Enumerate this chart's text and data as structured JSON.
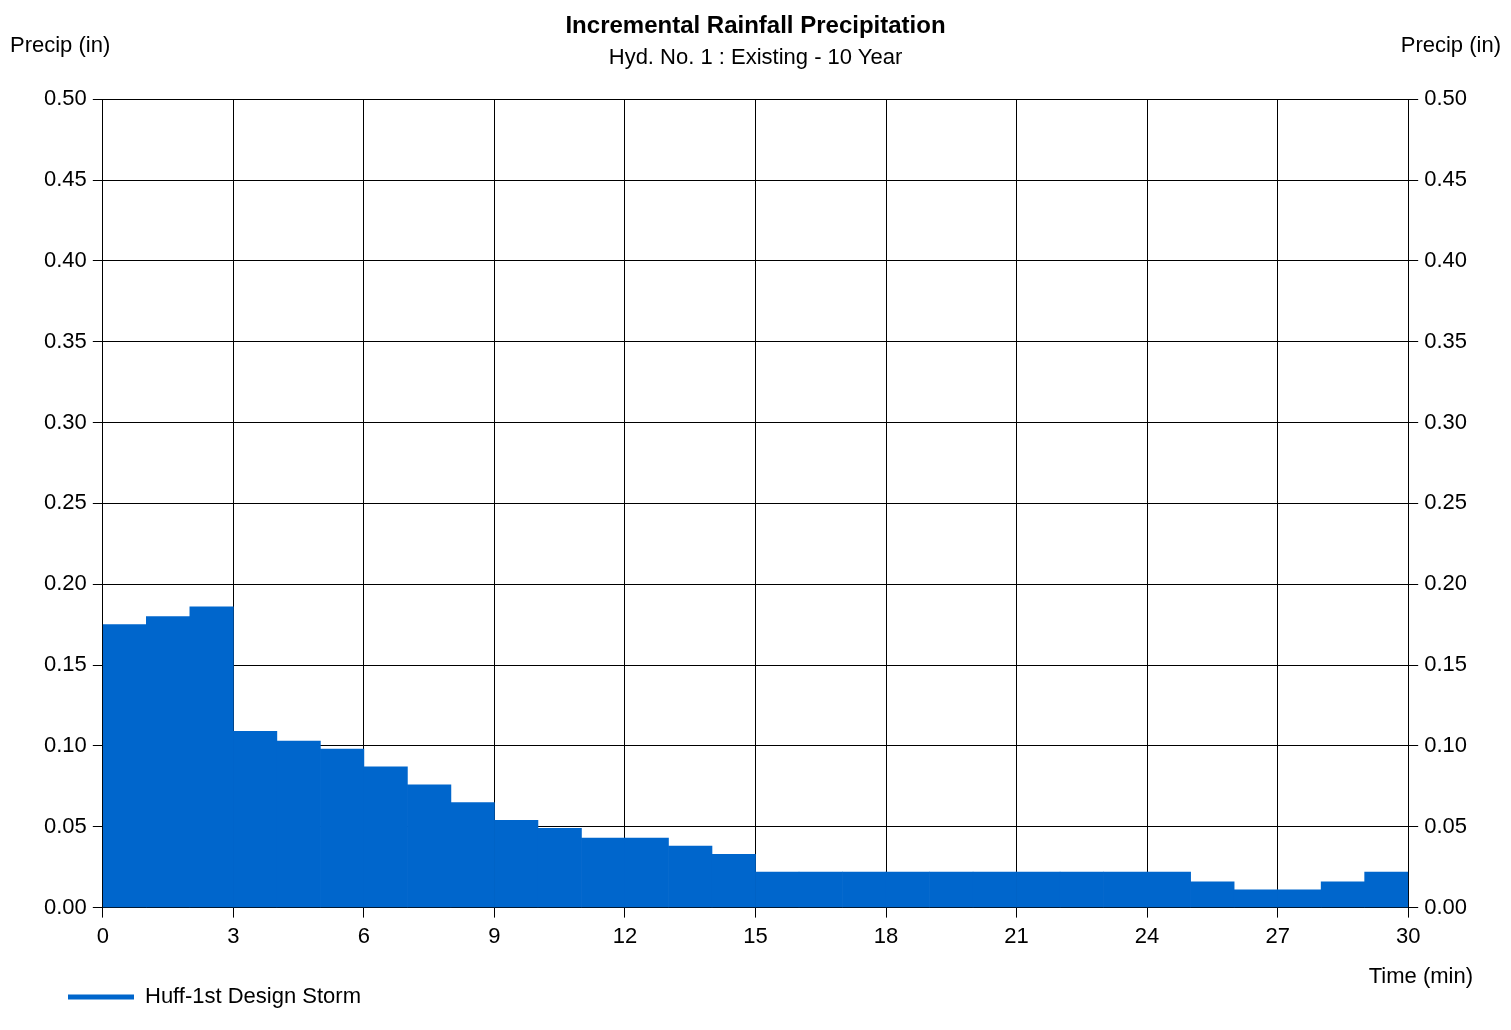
{
  "chart_data": {
    "type": "histogram",
    "title": "Incremental Rainfall Precipitation",
    "subtitle": "Hyd. No. 1 : Existing - 10 Year",
    "xlabel": "Time (min)",
    "ylabel": "Precip (in)",
    "y2label": "Precip (in)",
    "bins": [
      0,
      1,
      2,
      3,
      4,
      5,
      6,
      7,
      8,
      9,
      10,
      11,
      12,
      13,
      14,
      15,
      16,
      17,
      18,
      19,
      20,
      21,
      22,
      23,
      24,
      25,
      26,
      27,
      28,
      29,
      30
    ],
    "series": [
      {
        "name": "Huff-1st Design Storm",
        "color": "#0066cc",
        "values": [
          0.175,
          0.18,
          0.186,
          0.109,
          0.103,
          0.098,
          0.087,
          0.076,
          0.065,
          0.054,
          0.049,
          0.043,
          0.043,
          0.038,
          0.033,
          0.022,
          0.022,
          0.022,
          0.022,
          0.022,
          0.022,
          0.022,
          0.022,
          0.022,
          0.022,
          0.016,
          0.011,
          0.011,
          0.016,
          0.022
        ]
      }
    ],
    "xlim": [
      0,
      30
    ],
    "xticks": [
      0,
      3,
      6,
      9,
      12,
      15,
      18,
      21,
      24,
      27,
      30
    ],
    "ylim": [
      0,
      0.5
    ],
    "yticks": [
      {
        "value": 0,
        "label": "0.00"
      },
      {
        "value": 0.05,
        "label": "0.05"
      },
      {
        "value": 0.1,
        "label": "0.10"
      },
      {
        "value": 0.15,
        "label": "0.15"
      },
      {
        "value": 0.2,
        "label": "0.20"
      },
      {
        "value": 0.25,
        "label": "0.25"
      },
      {
        "value": 0.3,
        "label": "0.30"
      },
      {
        "value": 0.35,
        "label": "0.35"
      },
      {
        "value": 0.4,
        "label": "0.40"
      },
      {
        "value": 0.45,
        "label": "0.45"
      },
      {
        "value": 0.5,
        "label": "0.50"
      }
    ],
    "y2lim": [
      0,
      0.5
    ],
    "y2ticks": [
      {
        "value": 0,
        "label": "0.00"
      },
      {
        "value": 0.05,
        "label": "0.05"
      },
      {
        "value": 0.1,
        "label": "0.10"
      },
      {
        "value": 0.15,
        "label": "0.15"
      },
      {
        "value": 0.2,
        "label": "0.20"
      },
      {
        "value": 0.25,
        "label": "0.25"
      },
      {
        "value": 0.3,
        "label": "0.30"
      },
      {
        "value": 0.35,
        "label": "0.35"
      },
      {
        "value": 0.4,
        "label": "0.40"
      },
      {
        "value": 0.45,
        "label": "0.45"
      },
      {
        "value": 0.5,
        "label": "0.50"
      }
    ],
    "grid": true,
    "legend": "bottom left"
  }
}
